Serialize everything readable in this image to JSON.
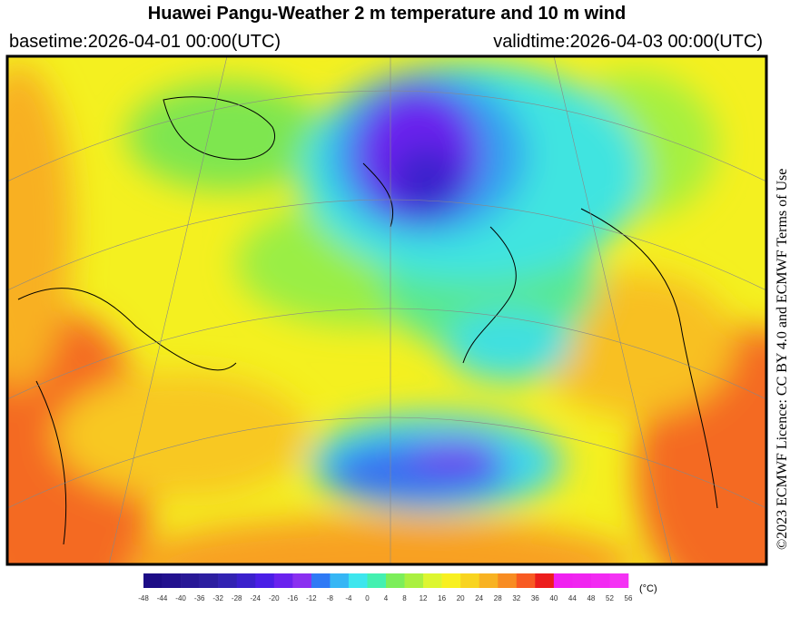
{
  "header": {
    "title": "Huawei Pangu-Weather  2 m temperature and 10 m wind",
    "basetime": "basetime:2026-04-01 00:00(UTC)",
    "validtime": "validtime:2026-04-03 00:00(UTC)"
  },
  "licence": "©2023 ECMWF Licence: CC BY 4.0 and ECMWF Terms of Use",
  "colorbar": {
    "ticks": [
      -48,
      -44,
      -40,
      -36,
      -32,
      -28,
      -24,
      -20,
      -16,
      -12,
      -8,
      -4,
      0,
      4,
      8,
      12,
      16,
      20,
      24,
      28,
      32,
      36,
      40,
      44,
      48,
      52,
      56
    ],
    "colors": [
      "#1c0c86",
      "#22118e",
      "#281896",
      "#2c1ea0",
      "#3222b2",
      "#3a20cc",
      "#4a1ee6",
      "#6a22ee",
      "#8a30f0",
      "#2f7af5",
      "#36b6f5",
      "#3ee6ee",
      "#44f0b0",
      "#7cee5a",
      "#aaf040",
      "#ddf630",
      "#f8f020",
      "#f8d420",
      "#f8b222",
      "#f88c22",
      "#f85a22",
      "#ec1c1c",
      "#f020f0",
      "#f024f0",
      "#f22af2",
      "#f432f4"
    ],
    "unit": "(°C)"
  }
}
